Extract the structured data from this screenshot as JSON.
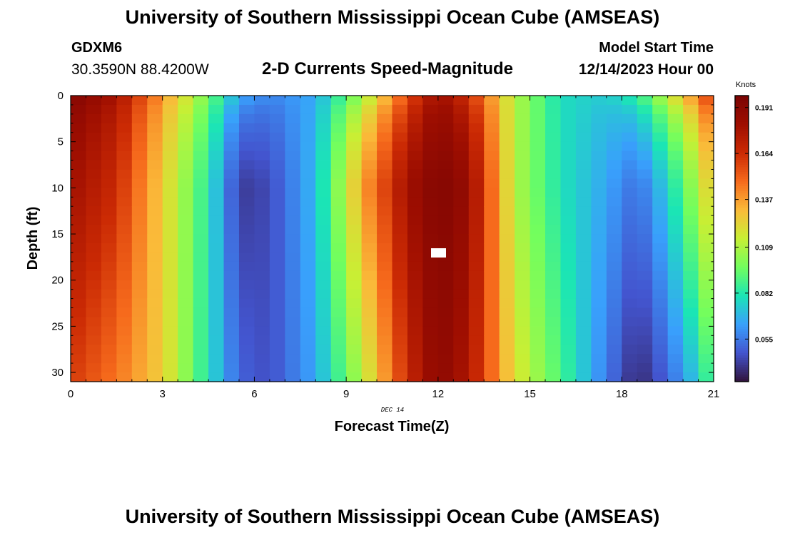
{
  "header": {
    "title": "University of Southern Mississippi Ocean Cube (AMSEAS)",
    "station": "GDXM6",
    "coordinates": "30.3590N  88.4200W",
    "subtitle": "2-D Currents Speed-Magnitude",
    "model_start_label": "Model Start Time",
    "model_start_value": "12/14/2023 Hour 00"
  },
  "footer": {
    "title": "University of Southern Mississippi Ocean Cube (AMSEAS)"
  },
  "chart_data": {
    "type": "heatmap",
    "title": "2-D Currents Speed-Magnitude",
    "xlabel": "Forecast Time(Z)",
    "ylabel": "Depth (ft)",
    "date_label": "DEC 14",
    "x_range": [
      0,
      21
    ],
    "y_range": [
      0,
      31
    ],
    "y_inverted": true,
    "x_ticks": [
      "0",
      "3",
      "6",
      "9",
      "12",
      "15",
      "18",
      "21"
    ],
    "y_ticks": [
      "0",
      "5",
      "10",
      "15",
      "20",
      "25",
      "30"
    ],
    "colorbar": {
      "label": "Knots",
      "ticks": [
        "0.191",
        "0.164",
        "0.137",
        "0.109",
        "0.082",
        "0.055"
      ],
      "range": [
        0.03,
        0.198
      ]
    },
    "profile_times": [
      0,
      1.5,
      3,
      4.5,
      5.5,
      6.5,
      8,
      9.5,
      11,
      12,
      13,
      14.5,
      16,
      17.5,
      18.5,
      19.5,
      20.5,
      21
    ],
    "surface_speed_knots": [
      0.196,
      0.18,
      0.14,
      0.1,
      0.07,
      0.06,
      0.065,
      0.1,
      0.15,
      0.18,
      0.16,
      0.11,
      0.078,
      0.075,
      0.09,
      0.12,
      0.15,
      0.17
    ],
    "bottom_speed_knots": [
      0.16,
      0.145,
      0.125,
      0.08,
      0.05,
      0.045,
      0.065,
      0.11,
      0.165,
      0.19,
      0.175,
      0.12,
      0.09,
      0.055,
      0.035,
      0.05,
      0.075,
      0.095
    ],
    "mid_depth_speed_knots": [
      0.18,
      0.165,
      0.125,
      0.082,
      0.04,
      0.044,
      0.07,
      0.135,
      0.18,
      0.194,
      0.185,
      0.11,
      0.08,
      0.065,
      0.052,
      0.075,
      0.11,
      0.13
    ],
    "mid_depth_ft": 10,
    "colormap": "turbo"
  }
}
